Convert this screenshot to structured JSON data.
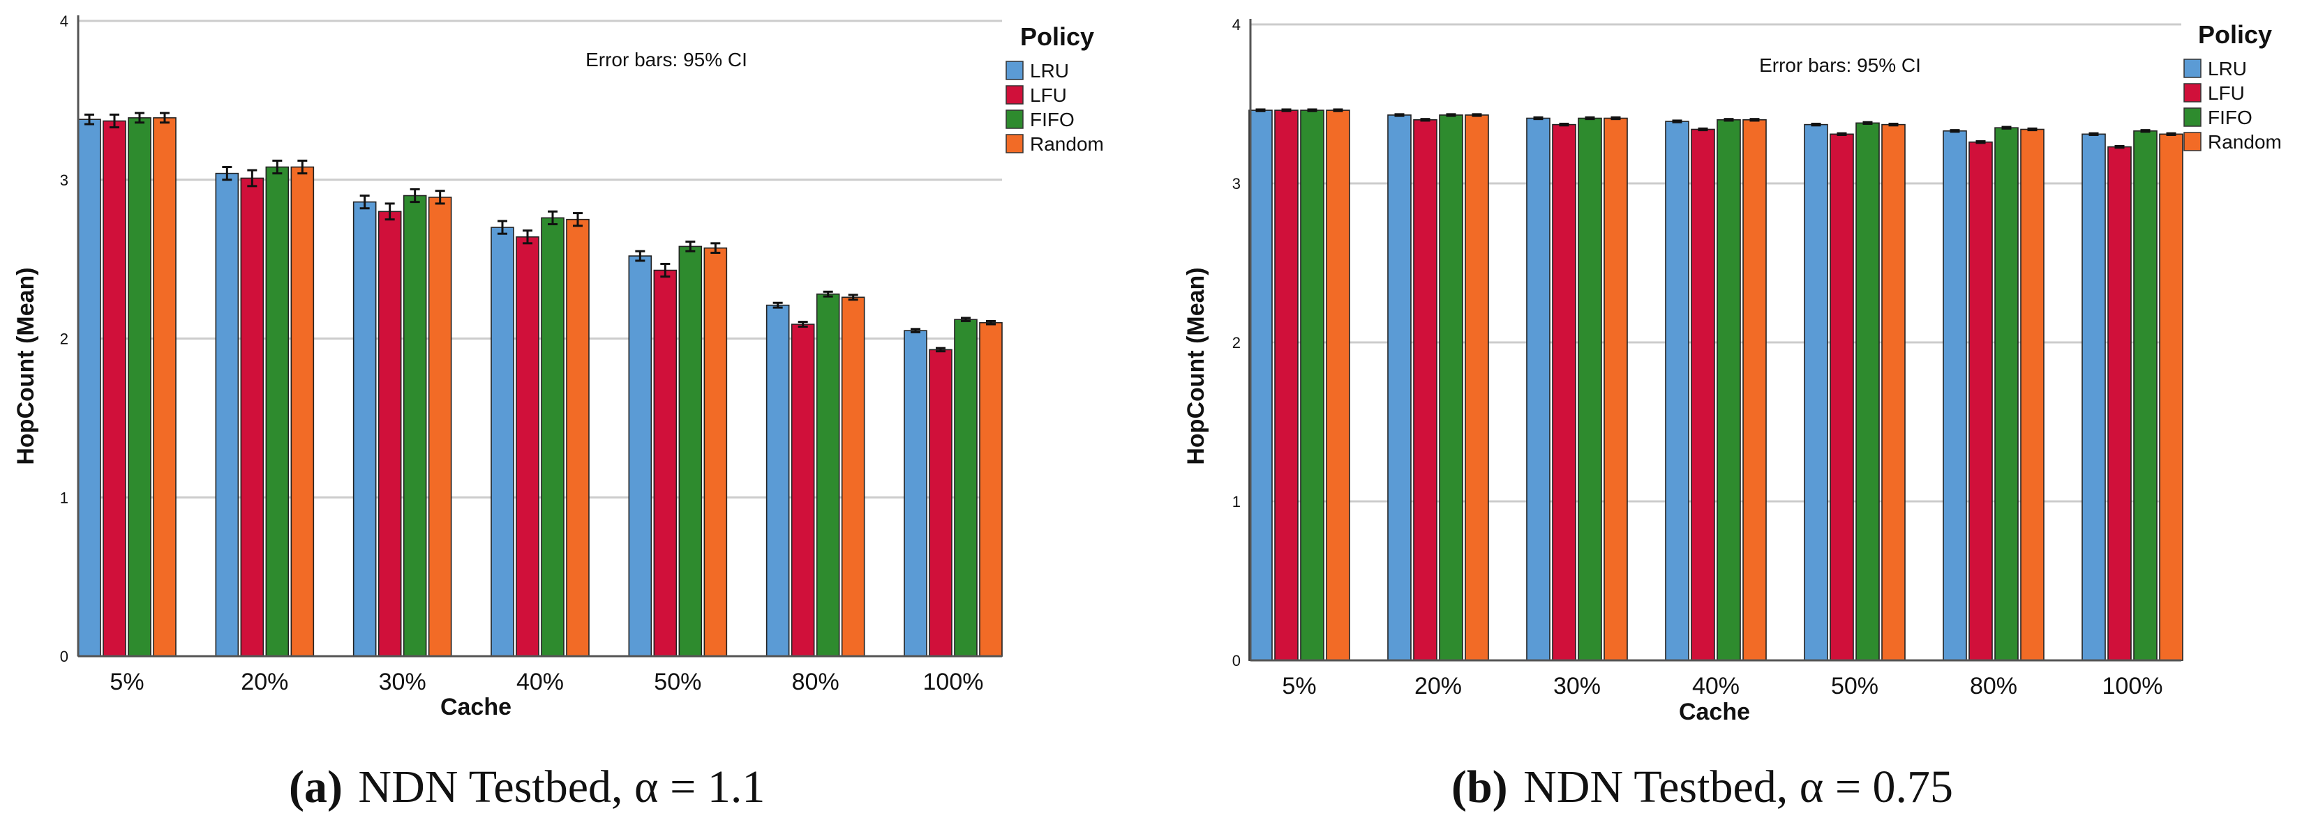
{
  "colors": {
    "LRU": "#5b9bd5",
    "LFU": "#d0103a",
    "FIFO": "#2e8b2e",
    "Random": "#f26b26",
    "grid": "#cccccc",
    "axis": "#555555"
  },
  "chart_data": [
    {
      "type": "bar",
      "ylabel": "HopCount (Mean)",
      "xlabel": "Cache",
      "legend_title": "Policy",
      "legend_position": "top-right",
      "note": "Error bars: 95% CI",
      "caption": {
        "letter": "(a)",
        "text": "NDN Testbed, α = 1.1"
      },
      "ylim": [
        0,
        4
      ],
      "yticks": [
        "0",
        "1",
        "2",
        "3",
        "4"
      ],
      "grid": true,
      "categories": [
        "5%",
        "20%",
        "30%",
        "40%",
        "50%",
        "80%",
        "100%"
      ],
      "series": [
        {
          "name": "LRU",
          "values": [
            3.38,
            3.04,
            2.86,
            2.7,
            2.52,
            2.21,
            2.05
          ],
          "err": [
            0.03,
            0.04,
            0.04,
            0.04,
            0.03,
            0.015,
            0.01
          ]
        },
        {
          "name": "LFU",
          "values": [
            3.37,
            3.01,
            2.8,
            2.64,
            2.43,
            2.09,
            1.93
          ],
          "err": [
            0.04,
            0.05,
            0.05,
            0.04,
            0.04,
            0.015,
            0.01
          ]
        },
        {
          "name": "FIFO",
          "values": [
            3.39,
            3.08,
            2.9,
            2.76,
            2.58,
            2.28,
            2.12
          ],
          "err": [
            0.03,
            0.04,
            0.04,
            0.04,
            0.03,
            0.015,
            0.01
          ]
        },
        {
          "name": "Random",
          "values": [
            3.39,
            3.08,
            2.89,
            2.75,
            2.57,
            2.26,
            2.1
          ],
          "err": [
            0.03,
            0.04,
            0.04,
            0.04,
            0.03,
            0.015,
            0.01
          ]
        }
      ]
    },
    {
      "type": "bar",
      "ylabel": "HopCount (Mean)",
      "xlabel": "Cache",
      "legend_title": "Policy",
      "legend_position": "top-right",
      "note": "Error bars: 95% CI",
      "caption": {
        "letter": "(b)",
        "text": "NDN Testbed, α = 0.75"
      },
      "ylim": [
        0,
        4
      ],
      "yticks": [
        "0",
        "1",
        "2",
        "3",
        "4"
      ],
      "grid": true,
      "categories": [
        "5%",
        "20%",
        "30%",
        "40%",
        "50%",
        "80%",
        "100%"
      ],
      "series": [
        {
          "name": "LRU",
          "values": [
            3.46,
            3.43,
            3.41,
            3.39,
            3.37,
            3.33,
            3.31
          ],
          "err": [
            0.005,
            0.005,
            0.005,
            0.005,
            0.005,
            0.005,
            0.005
          ]
        },
        {
          "name": "LFU",
          "values": [
            3.46,
            3.4,
            3.37,
            3.34,
            3.31,
            3.26,
            3.23
          ],
          "err": [
            0.005,
            0.005,
            0.005,
            0.005,
            0.005,
            0.005,
            0.005
          ]
        },
        {
          "name": "FIFO",
          "values": [
            3.46,
            3.43,
            3.41,
            3.4,
            3.38,
            3.35,
            3.33
          ],
          "err": [
            0.005,
            0.005,
            0.005,
            0.005,
            0.005,
            0.005,
            0.005
          ]
        },
        {
          "name": "Random",
          "values": [
            3.46,
            3.43,
            3.41,
            3.4,
            3.37,
            3.34,
            3.31
          ],
          "err": [
            0.005,
            0.005,
            0.005,
            0.005,
            0.005,
            0.005,
            0.005
          ]
        }
      ]
    }
  ]
}
